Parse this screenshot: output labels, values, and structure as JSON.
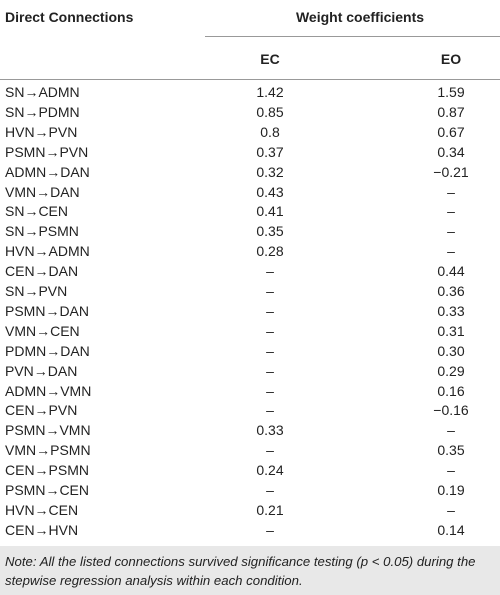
{
  "header": {
    "col1": "Direct Connections",
    "group": "Weight coefficients",
    "sub": [
      "EC",
      "EO"
    ]
  },
  "table": {
    "rows": [
      [
        "SN→ADMN",
        "1.42",
        "1.59"
      ],
      [
        "SN→PDMN",
        "0.85",
        "0.87"
      ],
      [
        "HVN→PVN",
        "0.8",
        "0.67"
      ],
      [
        "PSMN→PVN",
        "0.37",
        "0.34"
      ],
      [
        "ADMN→DAN",
        "0.32",
        "−0.21"
      ],
      [
        "VMN→DAN",
        "0.43",
        "–"
      ],
      [
        "SN→CEN",
        "0.41",
        "–"
      ],
      [
        "SN→PSMN",
        "0.35",
        "–"
      ],
      [
        "HVN→ADMN",
        "0.28",
        "–"
      ],
      [
        "CEN→DAN",
        "–",
        "0.44"
      ],
      [
        "SN→PVN",
        "–",
        "0.36"
      ],
      [
        "PSMN→DAN",
        "–",
        "0.33"
      ],
      [
        "VMN→CEN",
        "–",
        "0.31"
      ],
      [
        "PDMN→DAN",
        "–",
        "0.30"
      ],
      [
        "PVN→DAN",
        "–",
        "0.29"
      ],
      [
        "ADMN→VMN",
        "–",
        "0.16"
      ],
      [
        "CEN→PVN",
        "–",
        "−0.16"
      ],
      [
        "PSMN→VMN",
        "0.33",
        "–"
      ],
      [
        "VMN→PSMN",
        "–",
        "0.35"
      ],
      [
        "CEN→PSMN",
        "0.24",
        "–"
      ],
      [
        "PSMN→CEN",
        "–",
        "0.19"
      ],
      [
        "HVN→CEN",
        "0.21",
        "–"
      ],
      [
        "CEN→HVN",
        "–",
        "0.14"
      ]
    ]
  },
  "note": "Note: All the listed connections survived significance testing (p < 0.05) during the stepwise regression analysis within each condition."
}
